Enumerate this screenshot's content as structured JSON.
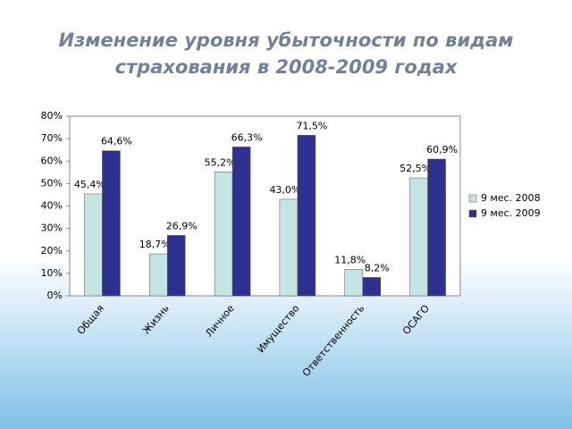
{
  "chart_data": {
    "type": "bar",
    "title": "Изменение уровня убыточности по видам страхования в 2008-2009 годах",
    "categories": [
      "Общая",
      "Жизнь",
      "Личное",
      "Имущество",
      "Ответственность",
      "ОСАГО"
    ],
    "series": [
      {
        "name": "9 мес. 2008",
        "color": "#c4e4e4",
        "values": [
          45.4,
          18.7,
          55.2,
          43.0,
          11.8,
          52.5
        ],
        "value_labels": [
          "45,4%",
          "18,7%",
          "55,2%",
          "43,0%",
          "11,8%",
          "52,5%"
        ]
      },
      {
        "name": "9 мес. 2009",
        "color": "#2e3192",
        "values": [
          64.6,
          26.9,
          66.3,
          71.5,
          8.2,
          60.9
        ],
        "value_labels": [
          "64,6%",
          "26,9%",
          "66,3%",
          "71,5%",
          "8,2%",
          "60,9%"
        ]
      }
    ],
    "ylim": [
      0,
      80
    ],
    "yticks": [
      {
        "value": 0,
        "label": "0%"
      },
      {
        "value": 10,
        "label": "10%"
      },
      {
        "value": 20,
        "label": "20%"
      },
      {
        "value": 30,
        "label": "30%"
      },
      {
        "value": 40,
        "label": "40%"
      },
      {
        "value": 50,
        "label": "50%"
      },
      {
        "value": 60,
        "label": "60%"
      },
      {
        "value": 70,
        "label": "70%"
      },
      {
        "value": 80,
        "label": "80%"
      }
    ],
    "grid": false,
    "legend": "right"
  }
}
